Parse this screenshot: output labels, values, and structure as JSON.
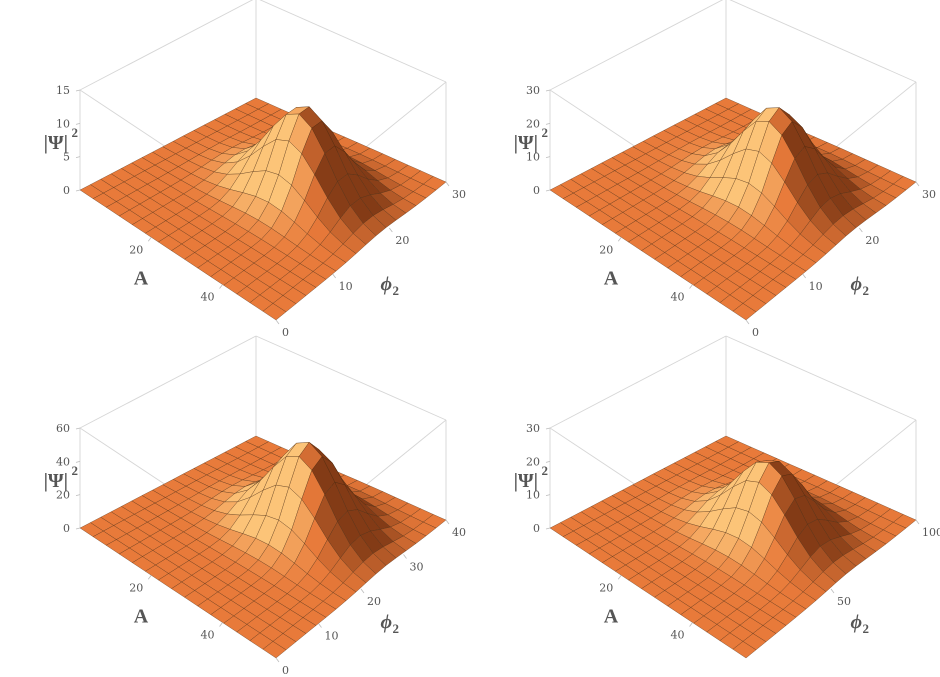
{
  "chart_data": [
    {
      "type": "surface",
      "xlabel": "A",
      "ylabel_main": "ϕ",
      "ylabel_sub": "2",
      "zlabel_main": "|Ψ|",
      "zlabel_sup": "2",
      "x_ticks": [
        "20",
        "40"
      ],
      "y_ticks": [
        "0",
        "10",
        "20",
        "30"
      ],
      "z_ticks": [
        "0",
        "5",
        "10",
        "15"
      ],
      "xlim": [
        0,
        55
      ],
      "ylim": [
        0,
        30
      ],
      "zlim": [
        0,
        15
      ],
      "peak": {
        "A": 21,
        "phi2": 12,
        "value": 13
      },
      "surface_color": "#e87a3a",
      "mesh_color": "#4a2a10"
    },
    {
      "type": "surface",
      "xlabel": "A",
      "ylabel_main": "ϕ",
      "ylabel_sub": "2",
      "zlabel_main": "|Ψ|",
      "zlabel_sup": "2",
      "x_ticks": [
        "20",
        "40"
      ],
      "y_ticks": [
        "0",
        "10",
        "20",
        "30"
      ],
      "z_ticks": [
        "0",
        "10",
        "20",
        "30"
      ],
      "xlim": [
        0,
        55
      ],
      "ylim": [
        0,
        30
      ],
      "zlim": [
        0,
        30
      ],
      "peak": {
        "A": 20,
        "phi2": 12,
        "value": 25
      },
      "surface_color": "#e87a3a",
      "mesh_color": "#4a2a10"
    },
    {
      "type": "surface",
      "xlabel": "A",
      "ylabel_main": "ϕ",
      "ylabel_sub": "2",
      "zlabel_main": "|Ψ|",
      "zlabel_sup": "2",
      "x_ticks": [
        "20",
        "40"
      ],
      "y_ticks": [
        "0",
        "10",
        "20",
        "30",
        "40"
      ],
      "z_ticks": [
        "0",
        "20",
        "40",
        "60"
      ],
      "xlim": [
        0,
        55
      ],
      "ylim": [
        0,
        40
      ],
      "zlim": [
        0,
        60
      ],
      "peak": {
        "A": 20,
        "phi2": 16,
        "value": 52
      },
      "surface_color": "#e87a3a",
      "mesh_color": "#4a2a10"
    },
    {
      "type": "surface",
      "xlabel": "A",
      "ylabel_main": "ϕ",
      "ylabel_sub": "2",
      "zlabel_main": "|Ψ|",
      "zlabel_sup": "2",
      "x_ticks": [
        "20",
        "40"
      ],
      "y_ticks": [
        "50",
        "100"
      ],
      "z_ticks": [
        "0",
        "10",
        "20",
        "30"
      ],
      "xlim": [
        0,
        55
      ],
      "ylim": [
        0,
        100
      ],
      "zlim": [
        0,
        30
      ],
      "peak": {
        "A": 22,
        "phi2": 40,
        "value": 22
      },
      "surface_color": "#e87a3a",
      "mesh_color": "#4a2a10"
    }
  ]
}
